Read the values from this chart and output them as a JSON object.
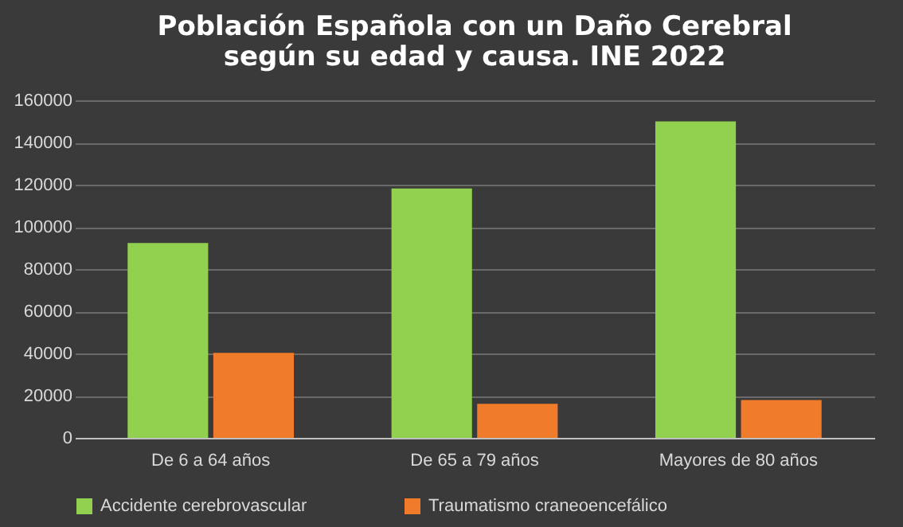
{
  "chart_data": {
    "type": "bar",
    "title": "Población  Española  con  un  Daño  Cerebral\nsegún  su  edad  y  causa.  INE  2022",
    "categories": [
      "De 6 a 64 años",
      "De 65 a 79 años",
      "Mayores de 80 años"
    ],
    "series": [
      {
        "name": "Accidente cerebrovascular",
        "color": "#92d050",
        "values": [
          92400,
          118200,
          150000
        ]
      },
      {
        "name": "Traumatismo craneoencefálico",
        "color": "#f07b2a",
        "values": [
          40300,
          16100,
          17900
        ]
      }
    ],
    "ylim": [
      0,
      160000
    ],
    "yticks": [
      0,
      20000,
      40000,
      60000,
      80000,
      100000,
      120000,
      140000,
      160000
    ],
    "grid": "y",
    "legend": "bottom"
  }
}
